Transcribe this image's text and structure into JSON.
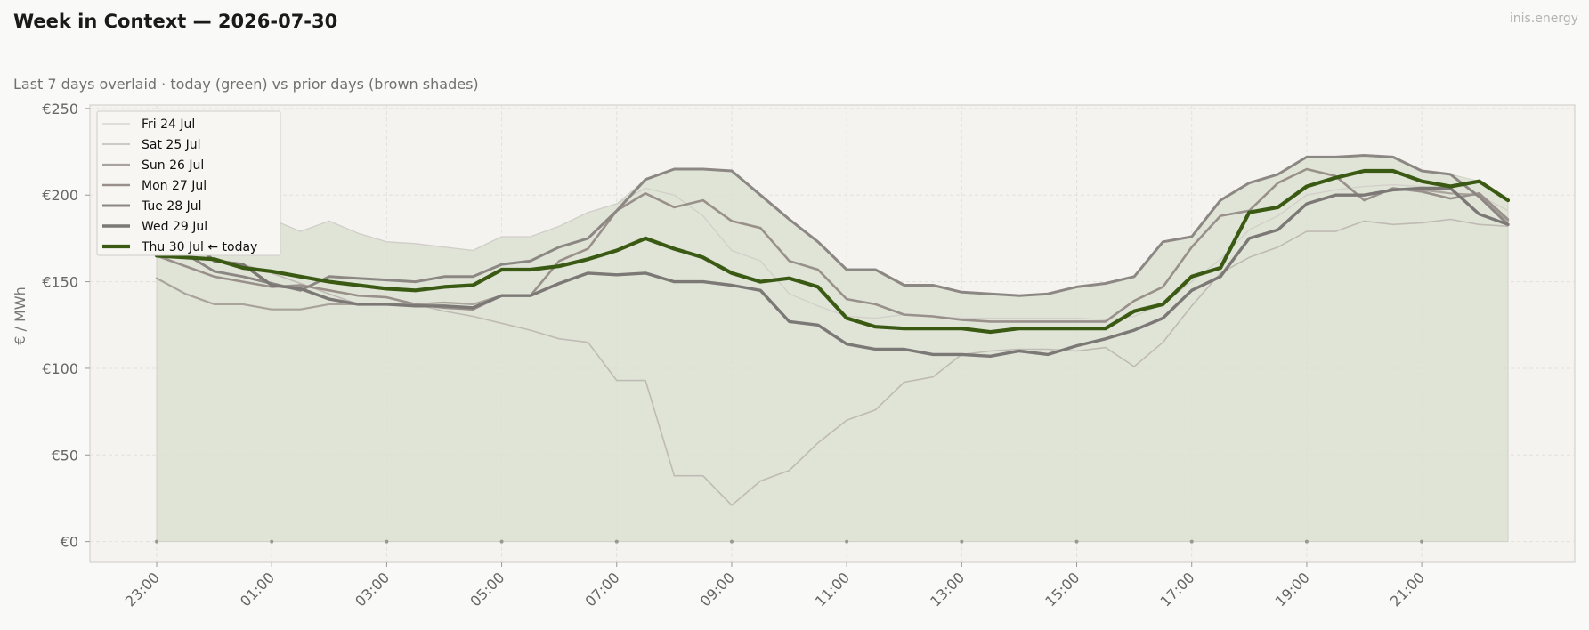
{
  "header": {
    "title": "Week in Context — 2026-07-30",
    "brand": "inis.energy",
    "subtitle": "Last 7 days overlaid  ·  today (green) vs prior days (brown shades)"
  },
  "colors": {
    "today": "#3a5a14",
    "prior": [
      "#d2ceca",
      "#c0bab5",
      "#aaa29c",
      "#99908b",
      "#8d8784",
      "#7c7876"
    ],
    "fill": "#dbe0d2"
  },
  "chart_data": {
    "type": "line",
    "xlabel": "",
    "ylabel": "€ / MWh",
    "x": [
      "23:00",
      "23:30",
      "00:00",
      "00:30",
      "01:00",
      "01:30",
      "02:00",
      "02:30",
      "03:00",
      "03:30",
      "04:00",
      "04:30",
      "05:00",
      "05:30",
      "06:00",
      "06:30",
      "07:00",
      "07:30",
      "08:00",
      "08:30",
      "09:00",
      "09:30",
      "10:00",
      "10:30",
      "11:00",
      "11:30",
      "12:00",
      "12:30",
      "13:00",
      "13:30",
      "14:00",
      "14:30",
      "15:00",
      "15:30",
      "16:00",
      "16:30",
      "17:00",
      "17:30",
      "18:00",
      "18:30",
      "19:00",
      "19:30",
      "20:00",
      "20:30",
      "21:00",
      "21:30",
      "22:00",
      "22:30"
    ],
    "x_tick_labels": [
      "23:00",
      "01:00",
      "03:00",
      "05:00",
      "07:00",
      "09:00",
      "11:00",
      "13:00",
      "15:00",
      "17:00",
      "19:00",
      "21:00"
    ],
    "ylim": [
      -12,
      252
    ],
    "y_ticks": [
      0,
      50,
      100,
      150,
      200,
      250
    ],
    "y_tick_labels": [
      "€0",
      "€50",
      "€100",
      "€150",
      "€200",
      "€250"
    ],
    "grid": true,
    "legend_position": "top-left",
    "series": [
      {
        "name": "Fri 24 Jul",
        "values": [
          193,
          193,
          188,
          187,
          186,
          179,
          185,
          178,
          173,
          172,
          170,
          168,
          176,
          176,
          182,
          190,
          195,
          204,
          200,
          188,
          168,
          162,
          143,
          136,
          130,
          129,
          131,
          130,
          129,
          129,
          129,
          129,
          129,
          128,
          130,
          137,
          150,
          163,
          180,
          188,
          200,
          203,
          205,
          206,
          205,
          201,
          200,
          191
        ]
      },
      {
        "name": "Sat 25 Jul",
        "values": [
          165,
          165,
          163,
          160,
          155,
          149,
          143,
          137,
          137,
          137,
          133,
          130,
          126,
          122,
          117,
          115,
          93,
          93,
          38,
          38,
          21,
          35,
          41,
          57,
          70,
          76,
          92,
          95,
          108,
          110,
          111,
          111,
          110,
          112,
          101,
          115,
          136,
          155,
          164,
          170,
          179,
          179,
          185,
          183,
          184,
          186,
          183,
          182
        ]
      },
      {
        "name": "Sun 26 Jul",
        "values": [
          152,
          143,
          137,
          137,
          134,
          134,
          137,
          137,
          137,
          137,
          138,
          137,
          142,
          142,
          149,
          155,
          154,
          155,
          150,
          150,
          148,
          145,
          127,
          125,
          114,
          111,
          111,
          108,
          108,
          107,
          110,
          108,
          113,
          117,
          122,
          129,
          145,
          153,
          175,
          180,
          195,
          200,
          200,
          203,
          203,
          201,
          200,
          185
        ]
      },
      {
        "name": "Mon 27 Jul",
        "values": [
          165,
          159,
          153,
          150,
          147,
          148,
          145,
          142,
          141,
          137,
          135,
          134,
          142,
          142,
          162,
          169,
          191,
          201,
          193,
          197,
          185,
          181,
          162,
          157,
          140,
          137,
          131,
          130,
          128,
          127,
          127,
          127,
          127,
          127,
          139,
          147,
          170,
          188,
          191,
          207,
          215,
          211,
          197,
          204,
          202,
          198,
          201,
          186
        ]
      },
      {
        "name": "Tue 28 Jul",
        "values": [
          178,
          166,
          156,
          153,
          149,
          145,
          153,
          152,
          151,
          150,
          153,
          153,
          160,
          162,
          170,
          175,
          191,
          209,
          215,
          215,
          214,
          200,
          186,
          173,
          157,
          157,
          148,
          148,
          144,
          143,
          142,
          143,
          147,
          149,
          153,
          173,
          176,
          197,
          207,
          212,
          222,
          222,
          223,
          222,
          214,
          212,
          199,
          183
        ]
      },
      {
        "name": "Wed 29 Jul",
        "values": [
          180,
          177,
          162,
          160,
          148,
          146,
          140,
          137,
          137,
          136,
          136,
          135,
          142,
          142,
          149,
          155,
          154,
          155,
          150,
          150,
          148,
          145,
          127,
          125,
          114,
          111,
          111,
          108,
          108,
          107,
          110,
          108,
          113,
          117,
          122,
          129,
          145,
          153,
          175,
          180,
          195,
          200,
          200,
          203,
          204,
          204,
          189,
          183
        ]
      },
      {
        "name": "Thu 30 Jul  ← today",
        "values": [
          165,
          164,
          163,
          158,
          156,
          153,
          150,
          148,
          146,
          145,
          147,
          148,
          157,
          157,
          159,
          163,
          168,
          175,
          169,
          164,
          155,
          150,
          152,
          147,
          129,
          124,
          123,
          123,
          123,
          121,
          123,
          123,
          123,
          123,
          133,
          137,
          153,
          158,
          190,
          193,
          205,
          210,
          214,
          214,
          208,
          205,
          208,
          197
        ]
      }
    ]
  }
}
